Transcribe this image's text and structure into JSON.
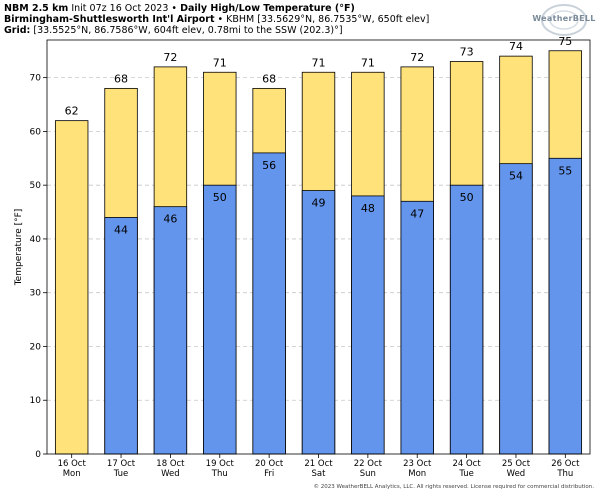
{
  "header": {
    "line1_bold_a": "NBM 2.5 km",
    "line1_init": "Init 07z 16 Oct 2023",
    "line1_sep": "•",
    "line1_bold_b": "Daily High/Low Temperature (°F)",
    "line2_bold": "Birmingham-Shuttlesworth Int'l Airport",
    "line2_sep": "•",
    "line2_rest": "KBHM [33.5629°N, 86.7535°W, 650ft elev]",
    "line3_bold": "Grid:",
    "line3_rest": "[33.5525°N, 86.7586°W, 604ft elev, 0.78mi to the SSW (202.3)°]"
  },
  "logo": {
    "text": "WeatherBELL"
  },
  "copyright": "© 2023 WeatherBELL Analytics, LLC. All rights reserved. License required for commercial distribution.",
  "colors": {
    "high": "#FFE27A",
    "low": "#6495ED",
    "grid": "#c8c8c8"
  },
  "chart_data": {
    "type": "bar",
    "ylabel": "Temperature [°F]",
    "ylim": [
      0,
      77
    ],
    "yticks": [
      0,
      10,
      20,
      30,
      40,
      50,
      60,
      70
    ],
    "grid": true,
    "categories": [
      {
        "date": "16 Oct",
        "day": "Mon"
      },
      {
        "date": "17 Oct",
        "day": "Tue"
      },
      {
        "date": "18 Oct",
        "day": "Wed"
      },
      {
        "date": "19 Oct",
        "day": "Thu"
      },
      {
        "date": "20 Oct",
        "day": "Fri"
      },
      {
        "date": "21 Oct",
        "day": "Sat"
      },
      {
        "date": "22 Oct",
        "day": "Sun"
      },
      {
        "date": "23 Oct",
        "day": "Mon"
      },
      {
        "date": "24 Oct",
        "day": "Tue"
      },
      {
        "date": "25 Oct",
        "day": "Wed"
      },
      {
        "date": "26 Oct",
        "day": "Thu"
      }
    ],
    "series": [
      {
        "values": [
          62,
          68,
          72,
          71,
          68,
          71,
          71,
          72,
          73,
          74,
          75
        ]
      },
      {
        "values": [
          null,
          44,
          46,
          50,
          56,
          49,
          48,
          47,
          50,
          54,
          55
        ]
      }
    ]
  }
}
